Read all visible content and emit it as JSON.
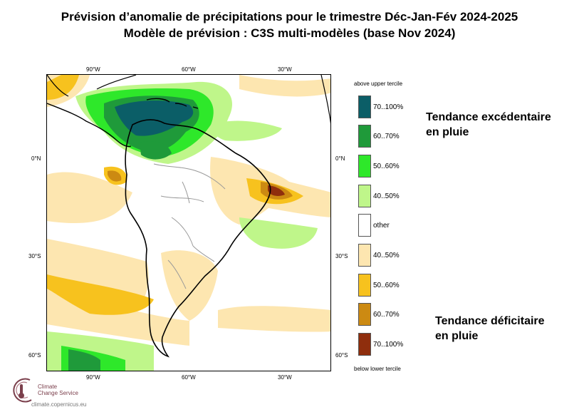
{
  "title": {
    "line1": "Prévision d’anomalie de précipitations pour le trimestre Déc-Jan-Fév 2024-2025",
    "line2": "Modèle de prévision : C3S multi-modèles (base Nov 2024)"
  },
  "map": {
    "lon_ticks": [
      "90°W",
      "60°W",
      "30°W"
    ],
    "lat_ticks": [
      "0°N",
      "30°S",
      "60°S"
    ]
  },
  "legend": {
    "header_top": "above upper tercile",
    "header_bottom": "below lower tercile",
    "items": [
      {
        "label": "70..100%",
        "color": "#0b5e67"
      },
      {
        "label": "60..70%",
        "color": "#1f9a3a"
      },
      {
        "label": "50..60%",
        "color": "#2ee82a"
      },
      {
        "label": "40..50%",
        "color": "#bff68a"
      },
      {
        "label": "other",
        "color": "#ffffff"
      },
      {
        "label": "40..50%",
        "color": "#fde6b0"
      },
      {
        "label": "50..60%",
        "color": "#f7c21e"
      },
      {
        "label": "60..70%",
        "color": "#cc8a12"
      },
      {
        "label": "70..100%",
        "color": "#8f2e0d"
      }
    ]
  },
  "annotations": {
    "wet_line1": "Tendance excédentaire",
    "wet_line2": "en pluie",
    "dry_line1": "Tendance déficitaire",
    "dry_line2": "en pluie"
  },
  "logo": {
    "line1": "Climate",
    "line2": "Change Service",
    "url": "climate.copernicus.eu",
    "icon": "thermometer-circle-logo"
  }
}
